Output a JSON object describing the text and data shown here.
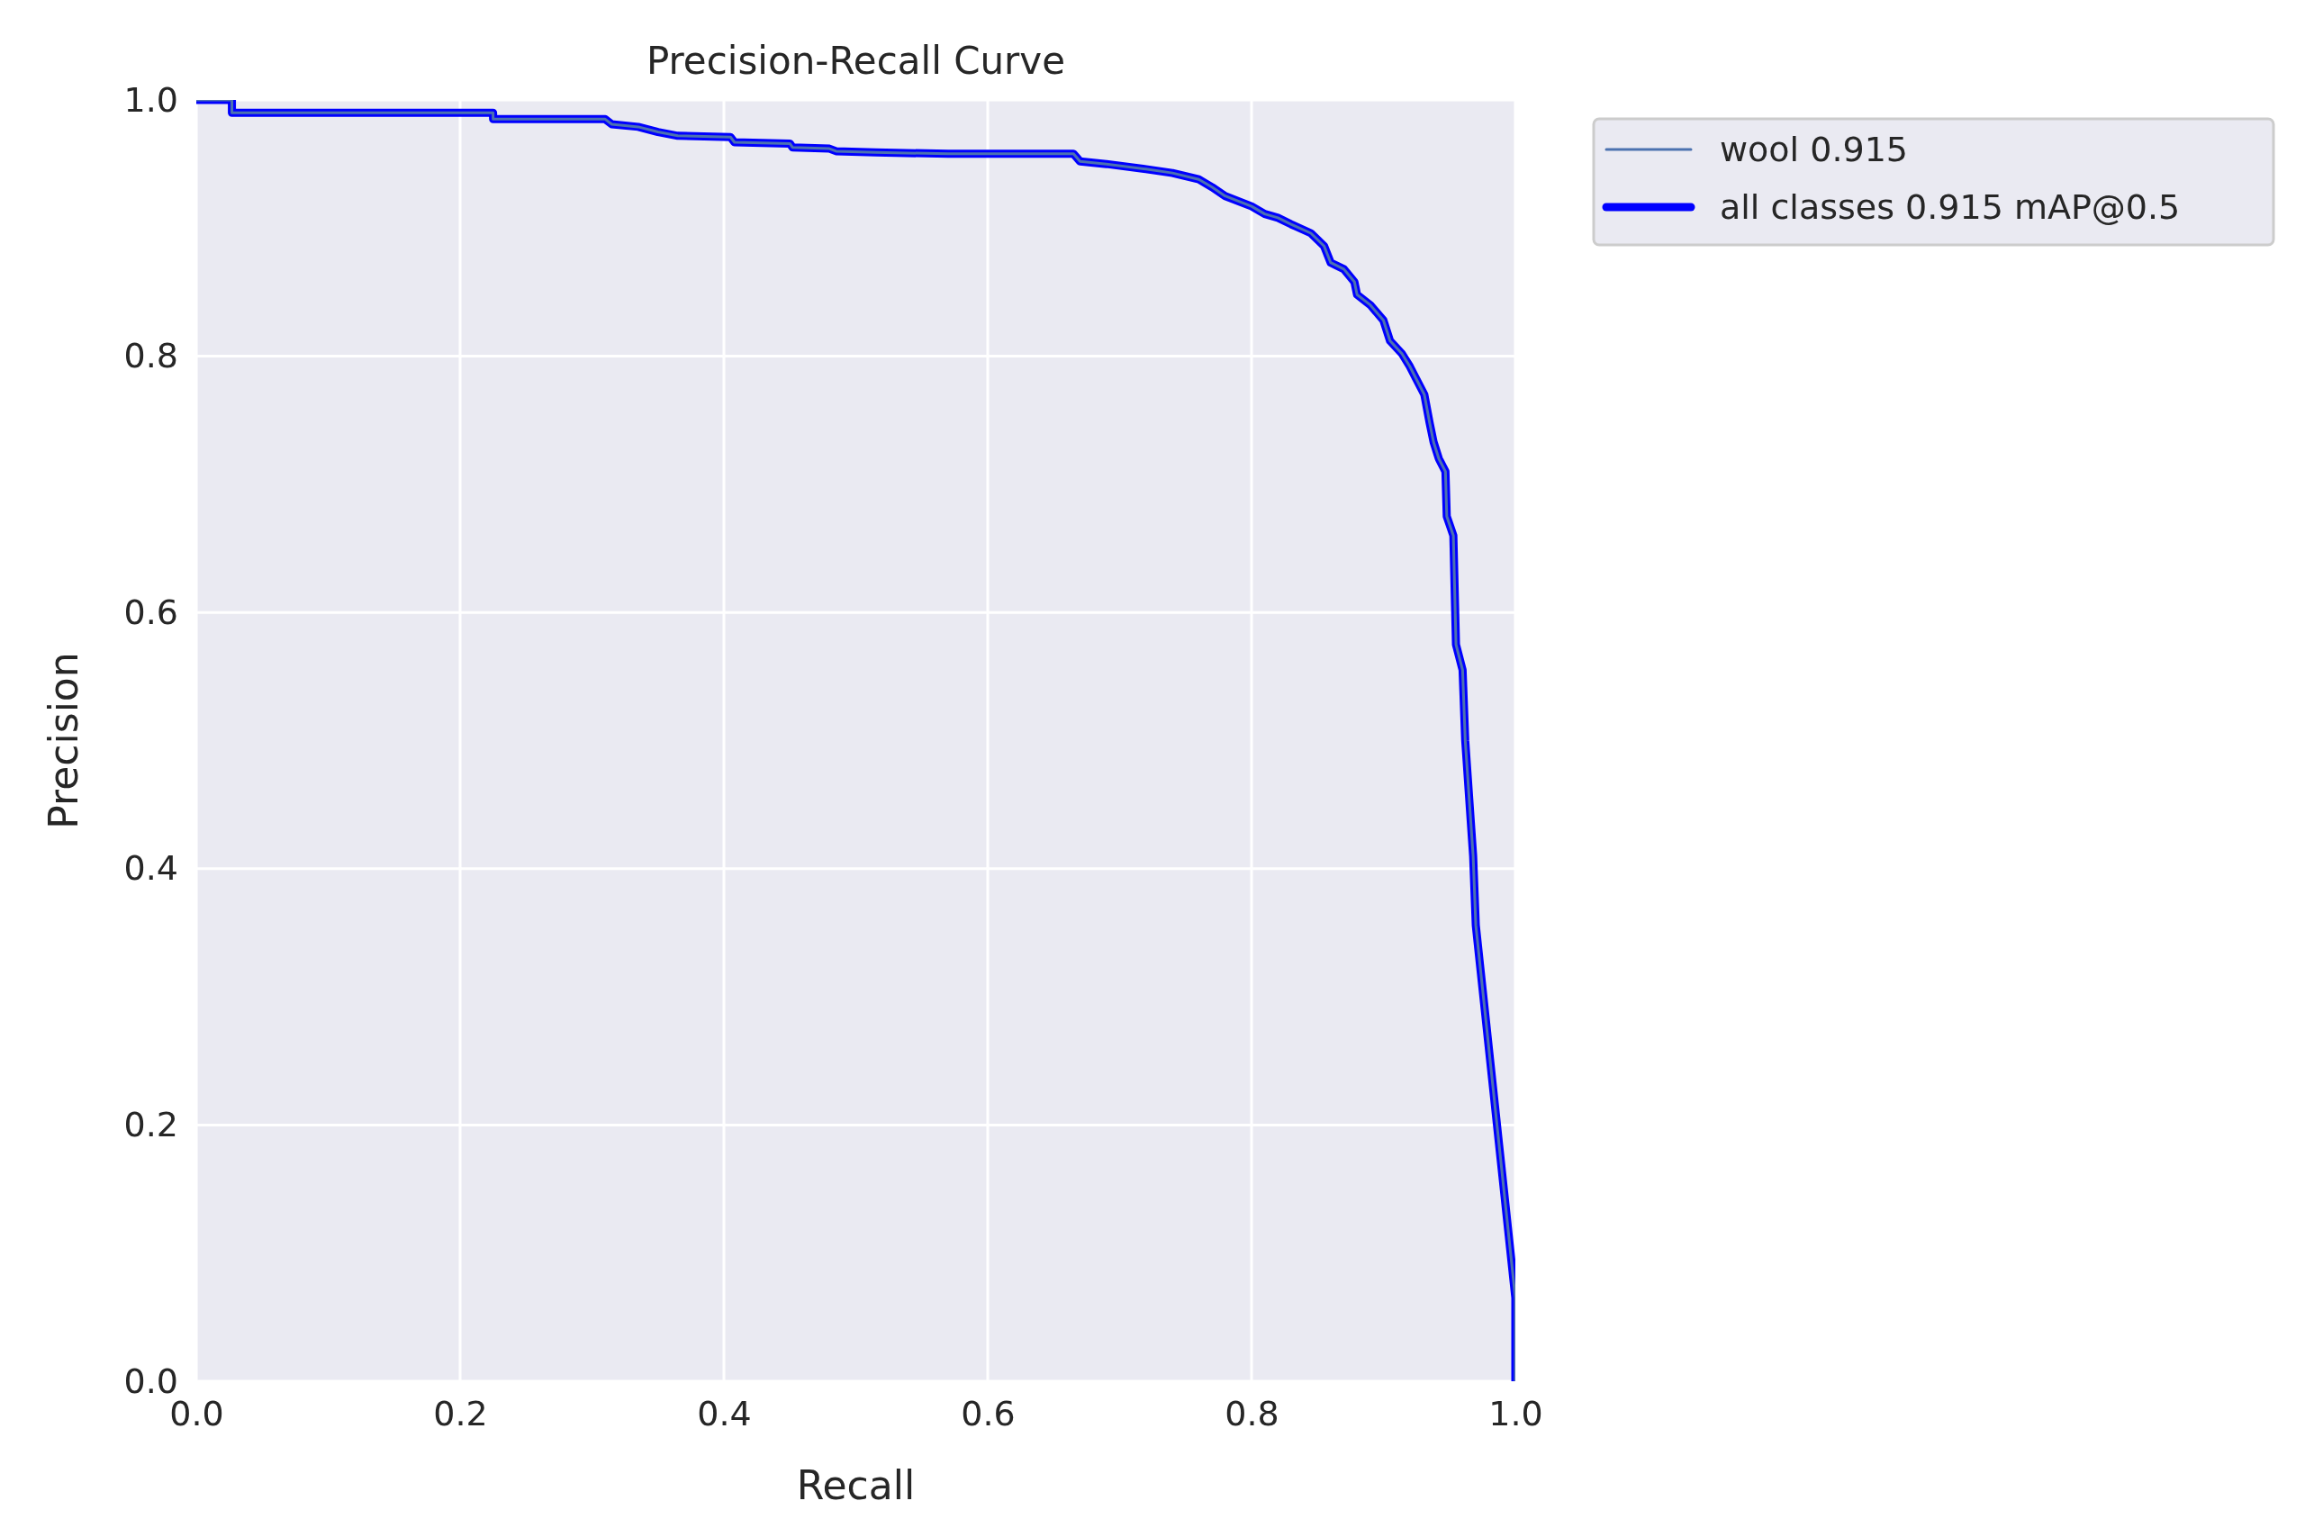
{
  "chart_data": {
    "type": "line",
    "title": "Precision-Recall Curve",
    "xlabel": "Recall",
    "ylabel": "Precision",
    "xlim": [
      0,
      1
    ],
    "ylim": [
      0,
      1
    ],
    "xticks": [
      {
        "value": 0,
        "label": "0.0"
      },
      0.2,
      0.4,
      0.6,
      0.8,
      {
        "value": 1,
        "label": "1.0"
      }
    ],
    "yticks": [
      {
        "value": 0,
        "label": "0.0"
      },
      0.2,
      0.4,
      0.6,
      0.8,
      {
        "value": 1,
        "label": "1.0"
      }
    ],
    "grid": true,
    "legend": "top right",
    "line_style": "solid",
    "marker": "none",
    "series": [
      {
        "name": "all classes 0.915 mAP@0.5",
        "color": "#0000ff",
        "x": [
          0,
          0.027,
          0.027,
          0.225,
          0.225,
          0.31,
          0.315,
          0.335,
          0.35,
          0.365,
          0.405,
          0.408,
          0.45,
          0.452,
          0.48,
          0.485,
          0.515,
          0.57,
          0.665,
          0.67,
          0.69,
          0.72,
          0.74,
          0.76,
          0.77,
          0.78,
          0.8,
          0.81,
          0.82,
          0.83,
          0.845,
          0.855,
          0.86,
          0.87,
          0.878,
          0.88,
          0.89,
          0.9,
          0.905,
          0.914,
          0.92,
          0.925,
          0.931,
          0.935,
          0.938,
          0.942,
          0.947,
          0.948,
          0.953,
          0.955,
          0.96,
          0.962,
          0.965,
          0.968,
          0.97,
          1.0,
          1.0
        ],
        "values": [
          1,
          1,
          0.99,
          0.99,
          0.985,
          0.985,
          0.981,
          0.979,
          0.975,
          0.972,
          0.971,
          0.967,
          0.966,
          0.963,
          0.962,
          0.96,
          0.959,
          0.958,
          0.958,
          0.952,
          0.95,
          0.946,
          0.943,
          0.938,
          0.932,
          0.925,
          0.917,
          0.911,
          0.908,
          0.903,
          0.896,
          0.886,
          0.873,
          0.868,
          0.858,
          0.848,
          0.84,
          0.828,
          0.812,
          0.802,
          0.792,
          0.782,
          0.77,
          0.748,
          0.733,
          0.72,
          0.71,
          0.675,
          0.66,
          0.575,
          0.555,
          0.5,
          0.455,
          0.41,
          0.356,
          0.065,
          0
        ]
      },
      {
        "name": "wool 0.915",
        "color": "#4c72b0",
        "x": [
          0,
          0.027,
          0.027,
          0.225,
          0.225,
          0.31,
          0.315,
          0.335,
          0.35,
          0.365,
          0.405,
          0.408,
          0.45,
          0.452,
          0.48,
          0.485,
          0.515,
          0.57,
          0.665,
          0.67,
          0.69,
          0.72,
          0.74,
          0.76,
          0.77,
          0.78,
          0.8,
          0.81,
          0.82,
          0.83,
          0.845,
          0.855,
          0.86,
          0.87,
          0.878,
          0.88,
          0.89,
          0.9,
          0.905,
          0.914,
          0.92,
          0.925,
          0.931,
          0.935,
          0.938,
          0.942,
          0.947,
          0.948,
          0.953,
          0.955,
          0.96,
          0.962,
          0.965,
          0.968,
          0.97,
          1.0,
          1.0
        ],
        "values": [
          1,
          1,
          0.99,
          0.99,
          0.985,
          0.985,
          0.981,
          0.979,
          0.975,
          0.972,
          0.971,
          0.967,
          0.966,
          0.963,
          0.962,
          0.96,
          0.959,
          0.958,
          0.958,
          0.952,
          0.95,
          0.946,
          0.943,
          0.938,
          0.932,
          0.925,
          0.917,
          0.911,
          0.908,
          0.903,
          0.896,
          0.886,
          0.873,
          0.868,
          0.858,
          0.848,
          0.84,
          0.828,
          0.812,
          0.802,
          0.792,
          0.782,
          0.77,
          0.748,
          0.733,
          0.72,
          0.71,
          0.675,
          0.66,
          0.575,
          0.555,
          0.5,
          0.455,
          0.41,
          0.356,
          0.065,
          0
        ]
      }
    ]
  }
}
